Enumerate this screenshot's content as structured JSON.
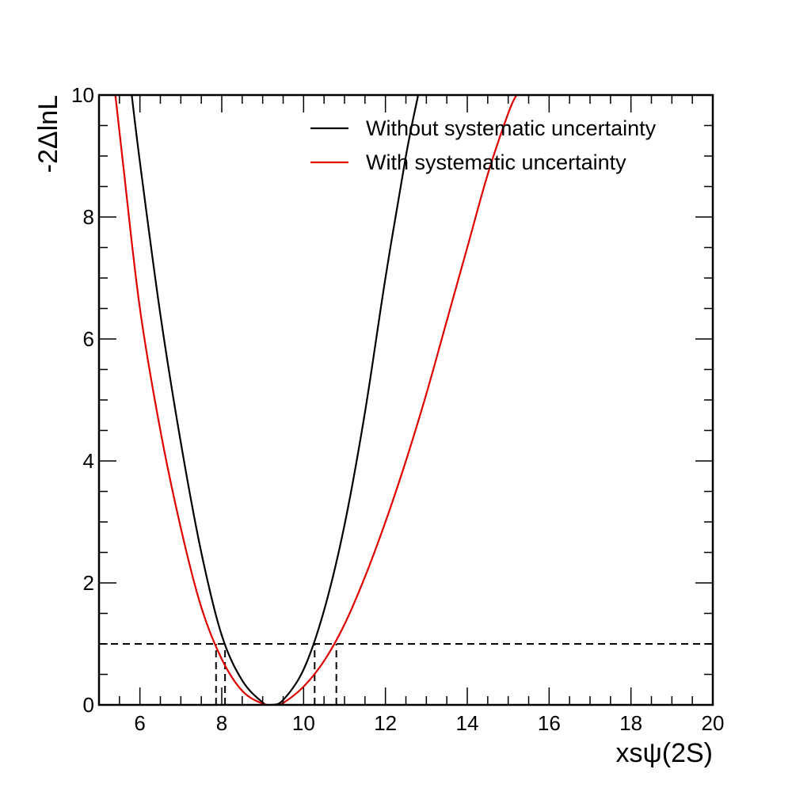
{
  "chart_data": {
    "type": "line",
    "title": "",
    "xlabel": "xsψ(2S)",
    "ylabel": "-2ΔlnL",
    "xlim": [
      5,
      20
    ],
    "ylim": [
      0,
      10
    ],
    "x_ticks": [
      "6",
      "8",
      "10",
      "12",
      "14",
      "16",
      "18",
      "20"
    ],
    "y_ticks": [
      "0",
      "2",
      "4",
      "6",
      "8",
      "10"
    ],
    "legend_position": "top-right",
    "grid": false,
    "reference_line": {
      "y": 1,
      "style": "dashed",
      "color": "#000000"
    },
    "series": [
      {
        "name": "Without systematic uncertainty",
        "color": "#000000",
        "x": [
          5.8,
          6.0,
          6.5,
          7.0,
          7.5,
          8.0,
          8.5,
          9.0,
          9.2,
          9.5,
          10.0,
          10.5,
          11.0,
          11.5,
          12.0,
          12.5,
          12.8
        ],
        "y": [
          10.0,
          8.9,
          6.4,
          4.3,
          2.5,
          1.14,
          0.4,
          0.04,
          0.0,
          0.08,
          0.58,
          1.55,
          2.95,
          4.8,
          7.0,
          9.0,
          10.0
        ],
        "interval_at_1": [
          8.08,
          10.27
        ]
      },
      {
        "name": "With systematic uncertainty",
        "color": "#e00000",
        "x": [
          5.4,
          5.6,
          6.0,
          6.5,
          7.0,
          7.5,
          8.0,
          8.5,
          9.0,
          9.3,
          9.5,
          10.0,
          10.5,
          11.0,
          11.5,
          12.0,
          12.5,
          13.0,
          13.5,
          14.0,
          14.5,
          15.0,
          15.2
        ],
        "y": [
          10.0,
          8.8,
          6.5,
          4.5,
          2.9,
          1.6,
          0.75,
          0.23,
          0.02,
          0.0,
          0.03,
          0.3,
          0.72,
          1.32,
          2.1,
          3.0,
          4.0,
          5.1,
          6.3,
          7.5,
          8.7,
          9.7,
          10.0
        ],
        "interval_at_1": [
          7.86,
          10.8
        ]
      }
    ]
  }
}
